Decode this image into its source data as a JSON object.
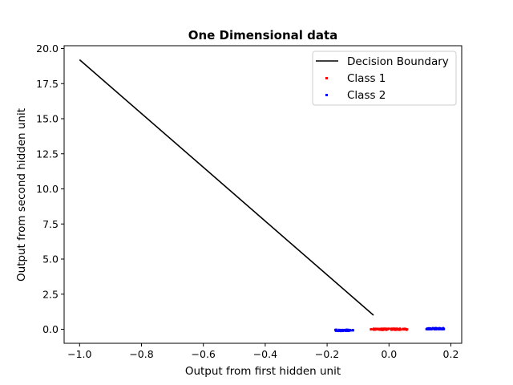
{
  "chart_data": {
    "type": "scatter",
    "title": "One Dimensional data",
    "xlabel": "Output from first hidden unit",
    "ylabel": "Output from second hidden unit",
    "xlim": [
      -1.05,
      0.235
    ],
    "ylim": [
      -1.0,
      20.2
    ],
    "x_ticks": [
      -1.0,
      -0.8,
      -0.6,
      -0.4,
      -0.2,
      0.0,
      0.2
    ],
    "x_tick_labels": [
      "−1.0",
      "−0.8",
      "−0.6",
      "−0.4",
      "−0.2",
      "0.0",
      "0.2"
    ],
    "y_ticks": [
      0.0,
      2.5,
      5.0,
      7.5,
      10.0,
      12.5,
      15.0,
      17.5,
      20.0
    ],
    "y_tick_labels": [
      "0.0",
      "2.5",
      "5.0",
      "7.5",
      "10.0",
      "12.5",
      "15.0",
      "17.5",
      "20.0"
    ],
    "grid": false,
    "legend_position": "top-right",
    "series": [
      {
        "name": "Decision Boundary",
        "kind": "line",
        "color": "#000000",
        "x": [
          -1.0,
          -0.05
        ],
        "y": [
          19.2,
          1.0
        ]
      },
      {
        "name": "Class 1",
        "kind": "scatter",
        "color": "#ff0000",
        "x_range": [
          -0.06,
          0.06
        ],
        "y_value": 0.0
      },
      {
        "name": "Class 2",
        "kind": "scatter",
        "color": "#0000ff",
        "x_ranges": [
          [
            -0.175,
            -0.115
          ],
          [
            0.12,
            0.18
          ]
        ],
        "y_values": [
          -0.08,
          0.04
        ]
      }
    ]
  }
}
